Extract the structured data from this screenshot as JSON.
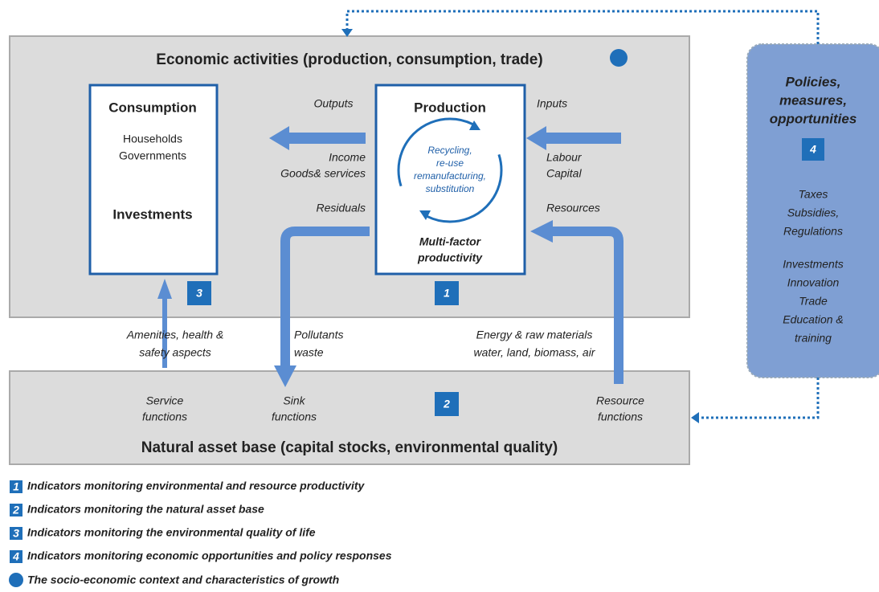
{
  "economic": {
    "title": "Economic activities (production, consumption, trade)"
  },
  "consumption": {
    "title": "Consumption",
    "lines": [
      "Households",
      "Governments"
    ],
    "investments": "Investments",
    "badge": "3"
  },
  "production": {
    "title": "Production",
    "cycle": [
      "Recycling,",
      "re-use",
      "remanufacturing,",
      "substitution"
    ],
    "footer": [
      "Multi-factor",
      "productivity"
    ],
    "badge": "1"
  },
  "flows": {
    "outputs": "Outputs",
    "income": [
      "Income",
      "Goods& services"
    ],
    "inputs": "Inputs",
    "labour": [
      "Labour",
      "Capital"
    ],
    "residuals": "Residuals",
    "resources": "Resources",
    "amenities": [
      "Amenities, health &",
      "safety aspects"
    ],
    "pollutants": [
      "Pollutants",
      "waste"
    ],
    "energy": [
      "Energy  & raw materials",
      "water, land, biomass, air"
    ]
  },
  "natural": {
    "title": "Natural asset base (capital stocks, environmental quality)",
    "badge": "2",
    "service": [
      "Service",
      "functions"
    ],
    "sink": [
      "Sink",
      "functions"
    ],
    "resource": [
      "Resource",
      "functions"
    ]
  },
  "policies": {
    "title": [
      "Policies,",
      "measures,",
      "opportunities"
    ],
    "badge": "4",
    "items": [
      "Taxes",
      "Subsidies,",
      "Regulations"
    ],
    "items2": [
      "Investments",
      "Innovation",
      "Trade",
      "Education &",
      "training"
    ]
  },
  "legend": [
    {
      "badge": "1",
      "text": "Indicators monitoring  environmental and resource productivity"
    },
    {
      "badge": "2",
      "text": "Indicators monitoring the natural asset base"
    },
    {
      "badge": "3",
      "text": "Indicators monitoring the environmental quality of life"
    },
    {
      "badge": "4",
      "text": "Indicators monitoring economic opportunities and policy responses"
    },
    {
      "text": "The socio-economic context and characteristics of growth"
    }
  ]
}
